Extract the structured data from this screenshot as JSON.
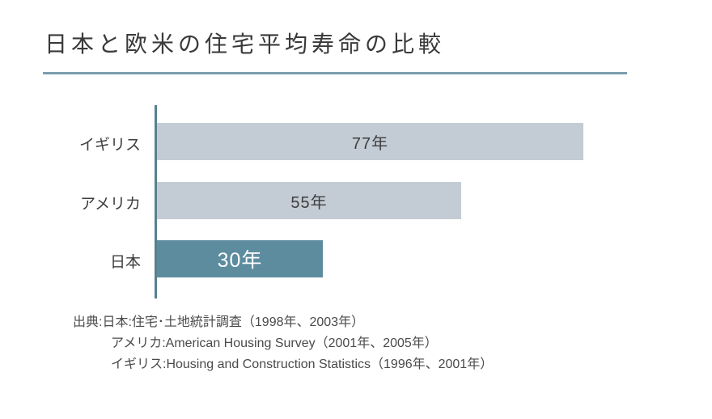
{
  "page": {
    "title": "日本と欧米の住宅平均寿命の比較"
  },
  "chart_data": {
    "type": "bar",
    "orientation": "horizontal",
    "title": "日本と欧米の住宅平均寿命の比較",
    "categories": [
      "イギリス",
      "アメリカ",
      "日本"
    ],
    "values": [
      77,
      55,
      30
    ],
    "value_labels": [
      "77年",
      "55年",
      "30年"
    ],
    "unit": "年",
    "x_range": [
      0,
      77
    ],
    "bar_colors": [
      "#c3ccd4",
      "#c3ccd4",
      "#5d8c9f"
    ],
    "value_label_colors": [
      "#3e3e3e",
      "#3e3e3e",
      "#ffffff"
    ],
    "emphasized_category": "日本",
    "legend": "none",
    "grid": false,
    "axis_color": "#56808f"
  },
  "source": {
    "lines": [
      "出典:日本:住宅･土地統計調査（1998年、2003年）",
      "アメリカ:American Housing Survey（2001年、2005年）",
      "イギリス:Housing and Construction Statistics（1996年、2001年）"
    ]
  },
  "colors": {
    "title_text": "#3a3a3a",
    "underline": "#7b9fae",
    "axis": "#56808f",
    "bar_light": "#c3ccd4",
    "bar_dark": "#5d8c9f",
    "body_text": "#4a4a4a",
    "background": "#ffffff"
  }
}
